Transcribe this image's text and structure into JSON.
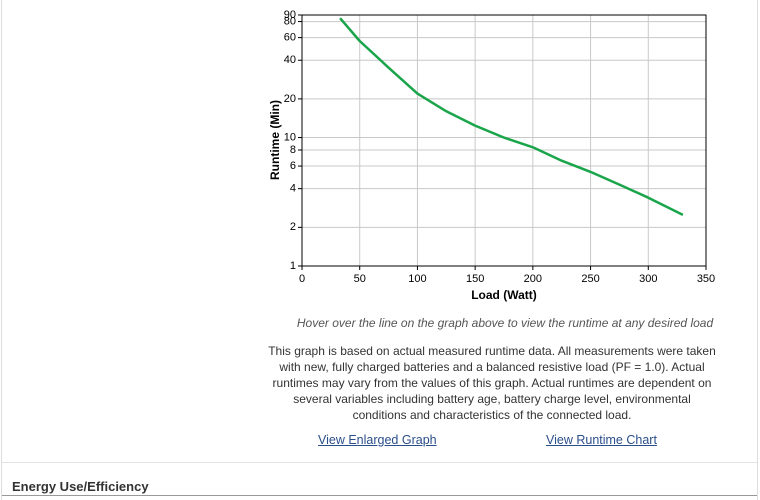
{
  "chart_data": {
    "type": "line",
    "xlabel": "Load (Watt)",
    "ylabel": "Runtime (Min)",
    "x": [
      33,
      50,
      75,
      100,
      125,
      150,
      175,
      200,
      225,
      250,
      275,
      300,
      330
    ],
    "values": [
      85,
      56.5,
      35,
      22,
      16,
      12.4,
      10,
      8.4,
      6.6,
      5.4,
      4.3,
      3.4,
      2.5
    ],
    "color": "#1aa54a",
    "xlim": [
      0,
      350
    ],
    "xticks": [
      0,
      50,
      100,
      150,
      200,
      250,
      300,
      350
    ],
    "ylim": [
      1,
      90
    ],
    "yticks": [
      1,
      2,
      4,
      6,
      8,
      10,
      20,
      40,
      60,
      80,
      90
    ],
    "log_y": true,
    "grid": true
  },
  "hover_note": "Hover over the line on the graph above to view the runtime at any desired load",
  "description": "This graph is based on actual measured runtime data. All measurements were taken with new, fully charged batteries and a balanced resistive load (PF = 1.0). Actual runtimes may vary from the values of this graph. Actual runtimes are dependent on several variables including battery age, battery charge level, environmental conditions and characteristics of the connected load.",
  "links": [
    "View Enlarged Graph",
    "View Runtime Chart"
  ],
  "section_heading": "Energy Use/Efficiency"
}
